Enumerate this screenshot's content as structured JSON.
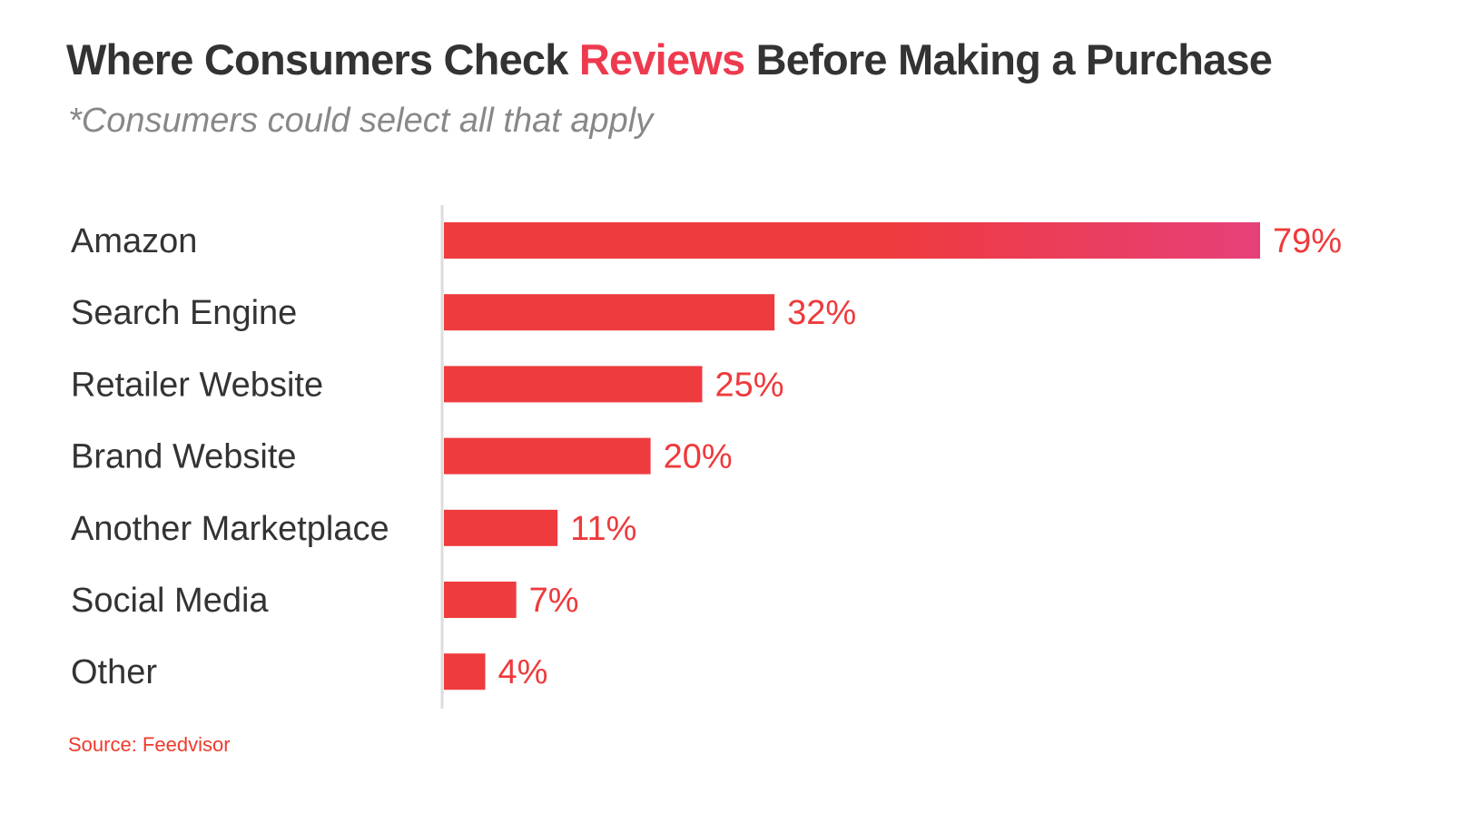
{
  "title": {
    "before": "Where Consumers Check ",
    "highlight": "Reviews",
    "after": " Before Making a Purchase"
  },
  "subtitle": "*Consumers could select all that apply",
  "source": "Source: Feedvisor",
  "colors": {
    "bar": "#ee3b3e",
    "bar_gradient_end": "#e6407a",
    "value_label": "#ee3a3c",
    "highlight": "#ee3a4e",
    "axis": "#dddddd"
  },
  "chart_data": {
    "type": "bar",
    "orientation": "horizontal",
    "categories": [
      "Amazon",
      "Search Engine",
      "Retailer Website",
      "Brand Website",
      "Another Marketplace",
      "Social Media",
      "Other"
    ],
    "values": [
      79,
      32,
      25,
      20,
      11,
      7,
      4
    ],
    "value_labels": [
      "79%",
      "32%",
      "25%",
      "20%",
      "11%",
      "7%",
      "4%"
    ],
    "unit": "%",
    "grid": false,
    "legend": "none"
  }
}
